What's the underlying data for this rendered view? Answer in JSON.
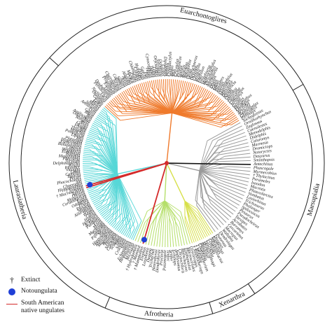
{
  "clades": [
    {
      "id": "euarchontoglires",
      "label": "Euarchontoglires",
      "start": 312,
      "end": 60,
      "color": "#ef7a2c",
      "labelAngle": 14
    },
    {
      "id": "marsupialia",
      "label": "Marsupialia",
      "start": 60,
      "end": 146,
      "color": "#9a9a9a",
      "labelAngle": 104
    },
    {
      "id": "xenarthra",
      "label": "Xenarthra",
      "start": 146,
      "end": 163,
      "color": "#d7e04a",
      "labelAngle": 154.5
    },
    {
      "id": "afrotheria",
      "label": "Afrotheria",
      "start": 163,
      "end": 203,
      "color": "#b5df6a",
      "labelAngle": 183
    },
    {
      "id": "laurasiatheria",
      "label": "Laurasiatheria",
      "start": 203,
      "end": 312,
      "color": "#57d7d7",
      "labelAngle": 256
    }
  ],
  "taxa": {
    "euarchontoglires": [
      "Galago",
      "Otolemur",
      "Nycticebus",
      "Loris",
      "Perodicticus",
      "Daubentonia",
      "Lemur",
      "Eulemur",
      "Propithecus",
      "Microcebus",
      "Cheirogaleus",
      "Tarsius",
      "Callithrix",
      "Saimiri",
      "Aotus",
      "Ateles",
      "Alouatta",
      "Cebus",
      "Macaca",
      "Papio",
      "Chlorocebus",
      "Colobus",
      "Hylobates",
      "Pongo",
      "Gorilla",
      "Pan",
      "Homo",
      "Cynocephalus",
      "Tupaia",
      "Lepus",
      "Oryctolagus",
      "Sylvilagus",
      "Ochotona",
      "Castor",
      "Dipodomys",
      "Pedetes",
      "Ctenodactylus",
      "Rattus",
      "Mus",
      "Cricetulus",
      "Peromyscus",
      "Spalax",
      "Sciurus",
      "Marmota",
      "Aplodontia",
      "Cavia",
      "Hydrochoerus",
      "Octodon",
      "Chinchilla",
      "Hystrix",
      "Erethizon",
      "Glis",
      "Graphiurus",
      "Heterocephalus",
      "Thryonomys",
      "Anomalurus",
      "Jaculus",
      "Dipus",
      "Zapus",
      "Meriones",
      "Tamias",
      "Spermophilus",
      "Capromys",
      "Myocastor",
      "Dasyprocta",
      "Agouti",
      "Coendou",
      "Abrocoma",
      "Lagostomus",
      "Ctenomys",
      "Sicista",
      "Geomys",
      "Perognathus",
      "Phodopus",
      "Microtus",
      "Arvicola",
      "Nannospalax",
      "Glaucomys",
      "Pteromys"
    ],
    "marsupialia": [
      "Tachyglossus",
      "Ornithorhynchus",
      "Zaglossus",
      "Caenolestes",
      "Monodelphis",
      "Didelphis",
      "Caluromys",
      "Marmosa",
      "Dromiciops",
      "Notoryctes",
      "Dasyurus",
      "Sminthopsis",
      "Antechinus",
      "Phascogale",
      "Myrmecobius",
      "Thylacinus",
      "Perameles",
      "Isoodon",
      "Macrotis",
      "Phascolarctos",
      "Vombatus",
      "Lasiorhinus",
      "Trichosurus",
      "Phalanger",
      "Spilocuscus",
      "Petaurus",
      "Pseudocheirus",
      "Tarsipes",
      "Acrobates",
      "Burramys",
      "Cercartetus",
      "Macropus",
      "Wallabia",
      "Dendrolagus",
      "Potorous"
    ],
    "xenarthra": [
      "Dasypus",
      "Euphractus",
      "Tolypeutes",
      "Chaetophractus",
      "Cyclopes",
      "Tamandua",
      "Myrmecophaga",
      "Bradypus",
      "Choloepus",
      "Glossotherium",
      "Mylodon",
      "Nothrotheriops"
    ],
    "afrotheria": [
      "Orycteropus",
      "Macroscelides",
      "Elephantulus",
      "Rhynchocyon",
      "Chrysochloris",
      "Amblysomus",
      "Echinops",
      "Setifer",
      "Tenrec",
      "Potamogale",
      "Procavia",
      "Dendrohyrax",
      "Heterohyrax",
      "Trichechus",
      "Dugong",
      "Loxodonta",
      "Elephas",
      "Mammuthus",
      "Mammut",
      "Hydrodamalis",
      "Microgale"
    ],
    "laurasiatheria": [
      "Erinaceus",
      "Hemiechinus",
      "Echinosorex",
      "Sorex",
      "Crocidura",
      "Suncus",
      "Talpa",
      "Scalopus",
      "Condylura",
      "Solenodon",
      "Pteropus",
      "Rousettus",
      "Megaderma",
      "Rhinolophus",
      "Hipposideros",
      "Myotis",
      "Pipistrellus",
      "Tadarida",
      "Mormoops",
      "Manis",
      "Felis",
      "Panthera",
      "Acinonyx",
      "Herpestes",
      "Hyaena",
      "Canis",
      "Vulpes",
      "Ursus",
      "Ailuropoda",
      "Mustela",
      "Procyon",
      "Phoca",
      "Odobenus",
      "Equus",
      "Ceratotherium",
      "Rhinoceros",
      "Diceros",
      "Tapirus",
      "Macrauchenia",
      "Toxodon",
      "Hippopotamus",
      "Choeropsis",
      "Sus",
      "Phacochoerus",
      "Pecari",
      "Tayassu",
      "Camelus",
      "Lama",
      "Vicugna",
      "Physeter",
      "Kogia",
      "Delphinapterus",
      "Tursiops",
      "Phocoena",
      "Mesoplodon",
      "Balaena",
      "Eubalaena",
      "Megaptera",
      "Caperea",
      "Balaenoptera",
      "Eschrichtius",
      "Hyperoodon",
      "Platanista",
      "Inia",
      "Lipotes",
      "Pontoporia",
      "Moschus",
      "Tragulus",
      "Giraffa",
      "Okapia",
      "Cervus",
      "Alces",
      "Rangifer",
      "Odocoileus",
      "Antilocapra",
      "Bos",
      "Bison",
      "Capra",
      "Ovis",
      "Antidorcas",
      "Suricata",
      "Martes",
      "Meles",
      "Lutra"
    ]
  },
  "extinct_taxa": [
    "Toxodon",
    "Macrauchenia",
    "Mammuthus",
    "Mammut",
    "Hydrodamalis",
    "Glossotherium",
    "Mylodon",
    "Nothrotheriops",
    "Thylacinus"
  ],
  "notoungulata": [
    "Toxodon",
    "Mammuthus"
  ],
  "south_american_native_ungulates": [
    "Macrauchenia",
    "Toxodon"
  ],
  "legend": {
    "extinct_symbol": "†",
    "extinct_label": "Extinct",
    "notoungulata_label": "Notoungulata",
    "sanu_label_line1": "South American",
    "sanu_label_line2": "native ungulates",
    "notoungulata_color": "#1f3fd6",
    "sanu_color": "#d42b2b"
  },
  "colors": {
    "circle": "#222222",
    "root_line": "#111111",
    "highlight": "#d42b2b"
  }
}
